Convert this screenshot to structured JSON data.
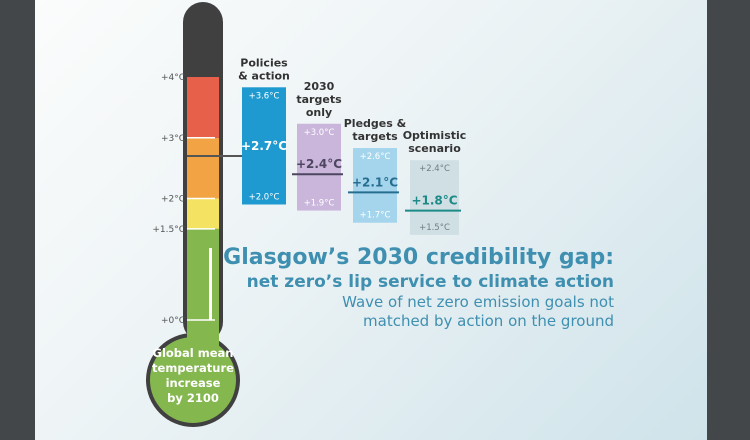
{
  "chart_data": {
    "type": "bar",
    "unit": "°C",
    "scale_ticks": [
      {
        "value": 0,
        "label": "+0°C"
      },
      {
        "value": 1.5,
        "label": "+1.5°C"
      },
      {
        "value": 2,
        "label": "+2°C"
      },
      {
        "value": 3,
        "label": "+3°C"
      },
      {
        "value": 4,
        "label": "+4°C"
      }
    ],
    "bulb_label": [
      "Global mean",
      "temperature",
      "increase",
      "by 2100"
    ],
    "scenarios": [
      {
        "name_lines": [
          "Policies",
          "& action"
        ],
        "low": 2.0,
        "high": 3.6,
        "central": 2.7,
        "low_label": "+2.0°C",
        "high_label": "+3.6°C",
        "central_label": "+2.7°C",
        "color": "#1e9ad0",
        "line_color": "#2a5f7a",
        "text_color": "#ffffff"
      },
      {
        "name_lines": [
          "2030",
          "targets",
          "only"
        ],
        "low": 1.9,
        "high": 3.0,
        "central": 2.4,
        "low_label": "+1.9°C",
        "high_label": "+3.0°C",
        "central_label": "+2.4°C",
        "color": "#c9b6da",
        "line_color": "#4e4560",
        "text_color": "#ffffff"
      },
      {
        "name_lines": [
          "Pledges &",
          "targets"
        ],
        "low": 1.7,
        "high": 2.6,
        "central": 2.1,
        "low_label": "+1.7°C",
        "high_label": "+2.6°C",
        "central_label": "+2.1°C",
        "color": "#a5d5ec",
        "line_color": "#266e8f",
        "text_color": "#ffffff"
      },
      {
        "name_lines": [
          "Optimistic",
          "scenario"
        ],
        "low": 1.5,
        "high": 2.4,
        "central": 1.8,
        "low_label": "+1.5°C",
        "high_label": "+2.4°C",
        "central_label": "+1.8°C",
        "color": "#cfdfe4",
        "line_color": "#1c8a86",
        "text_color": "#6c7f86"
      }
    ]
  },
  "headline": {
    "title": "Glasgow’s 2030 credibility gap:",
    "subtitle": "net zero’s lip service to climate action",
    "tagline_line1": "Wave of net zero emission goals not",
    "tagline_line2": "matched by action on the ground"
  }
}
